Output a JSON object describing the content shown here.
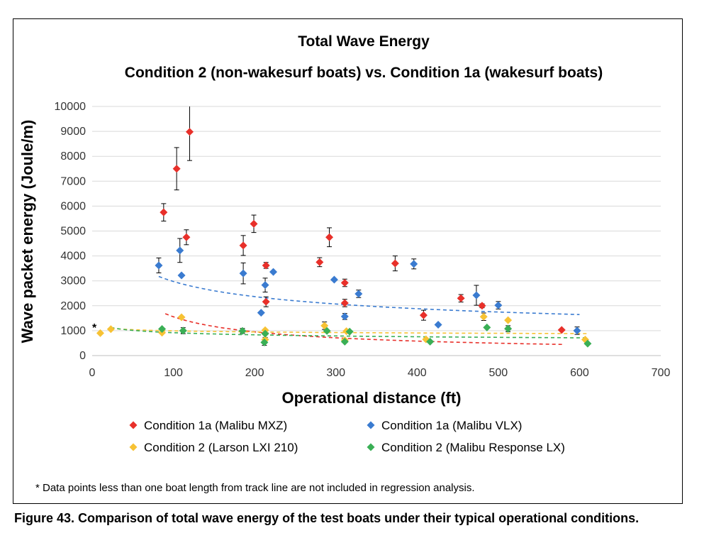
{
  "figure_caption": "Figure 43. Comparison of total wave energy of the test boats under their typical operational conditions.",
  "footnote": "* Data points less than one boat length from track line are not included in regression analysis.",
  "asterisk_marker": "*",
  "colors": {
    "red": "#e8302a",
    "blue": "#3a7bd0",
    "yellow": "#f7c234",
    "green": "#3aaf55",
    "grid": "#d9d9d9"
  },
  "chart_data": {
    "type": "scatter",
    "title": "Total Wave Energy",
    "subtitle": "Condition 2 (non-wakesurf boats) vs. Condition 1a (wakesurf boats)",
    "xlabel": "Operational distance (ft)",
    "ylabel": "Wave packet energy (Joule/m)",
    "xlim": [
      0,
      700
    ],
    "ylim": [
      0,
      10000
    ],
    "x_ticks": [
      0,
      100,
      200,
      300,
      400,
      500,
      600,
      700
    ],
    "y_ticks": [
      0,
      1000,
      2000,
      3000,
      4000,
      5000,
      6000,
      7000,
      8000,
      9000,
      10000
    ],
    "grid": "horizontal",
    "legend_position": "bottom",
    "series": [
      {
        "name": "Condition 1a (Malibu MXZ)",
        "color": "#e8302a",
        "points": [
          {
            "x": 88,
            "y": 5750,
            "err": 350
          },
          {
            "x": 104,
            "y": 7500,
            "err": 850
          },
          {
            "x": 116,
            "y": 4750,
            "err": 300
          },
          {
            "x": 120,
            "y": 8980,
            "err": 1150
          },
          {
            "x": 186,
            "y": 4420,
            "err": 400
          },
          {
            "x": 199,
            "y": 5290,
            "err": 350
          },
          {
            "x": 214,
            "y": 3620,
            "err": 120
          },
          {
            "x": 214,
            "y": 2160,
            "err": 200
          },
          {
            "x": 280,
            "y": 3750,
            "err": 180
          },
          {
            "x": 292,
            "y": 4750,
            "err": 380
          },
          {
            "x": 311,
            "y": 2920,
            "err": 150
          },
          {
            "x": 311,
            "y": 2110,
            "err": 150
          },
          {
            "x": 373,
            "y": 3700,
            "err": 300
          },
          {
            "x": 408,
            "y": 1620,
            "err": 200
          },
          {
            "x": 454,
            "y": 2300,
            "err": 150
          },
          {
            "x": 480,
            "y": 2000,
            "err": 80
          },
          {
            "x": 578,
            "y": 1030,
            "err": 0
          }
        ],
        "trend": {
          "a": 41000,
          "b": -0.71,
          "x_start": 90,
          "x_end": 580
        }
      },
      {
        "name": "Condition 1a (Malibu VLX)",
        "color": "#3a7bd0",
        "points": [
          {
            "x": 82,
            "y": 3620,
            "err": 300
          },
          {
            "x": 108,
            "y": 4220,
            "err": 480
          },
          {
            "x": 110,
            "y": 3220,
            "err": 0
          },
          {
            "x": 186,
            "y": 3300,
            "err": 420
          },
          {
            "x": 208,
            "y": 1720,
            "err": 0
          },
          {
            "x": 213,
            "y": 2830,
            "err": 280
          },
          {
            "x": 223,
            "y": 3360,
            "err": 0
          },
          {
            "x": 298,
            "y": 3050,
            "err": 0
          },
          {
            "x": 311,
            "y": 1570,
            "err": 120
          },
          {
            "x": 328,
            "y": 2480,
            "err": 150
          },
          {
            "x": 396,
            "y": 3680,
            "err": 200
          },
          {
            "x": 426,
            "y": 1240,
            "err": 0
          },
          {
            "x": 473,
            "y": 2420,
            "err": 400
          },
          {
            "x": 500,
            "y": 2020,
            "err": 150
          },
          {
            "x": 597,
            "y": 1000,
            "err": 150
          }
        ],
        "trend": {
          "a": 13600,
          "b": -0.33,
          "x_start": 82,
          "x_end": 600
        }
      },
      {
        "name": "Condition 2 (Larson LXI 210)",
        "color": "#f7c234",
        "points": [
          {
            "x": 10,
            "y": 900,
            "err": 0
          },
          {
            "x": 23,
            "y": 1060,
            "err": 0
          },
          {
            "x": 86,
            "y": 920,
            "err": 0
          },
          {
            "x": 110,
            "y": 1540,
            "err": 0
          },
          {
            "x": 213,
            "y": 640,
            "err": 0
          },
          {
            "x": 213,
            "y": 1020,
            "err": 0
          },
          {
            "x": 286,
            "y": 1200,
            "err": 150
          },
          {
            "x": 311,
            "y": 620,
            "err": 0
          },
          {
            "x": 313,
            "y": 980,
            "err": 0
          },
          {
            "x": 411,
            "y": 650,
            "err": 0
          },
          {
            "x": 482,
            "y": 1560,
            "err": 150
          },
          {
            "x": 512,
            "y": 1420,
            "err": 0
          },
          {
            "x": 607,
            "y": 640,
            "err": 0
          }
        ],
        "trend": {
          "a": 1340,
          "b": -0.065,
          "x_start": 23,
          "x_end": 610
        }
      },
      {
        "name": "Condition 2 (Malibu Response LX)",
        "color": "#3aaf55",
        "points": [
          {
            "x": 86,
            "y": 1070,
            "err": 0
          },
          {
            "x": 112,
            "y": 1000,
            "err": 120
          },
          {
            "x": 185,
            "y": 990,
            "err": 100
          },
          {
            "x": 212,
            "y": 530,
            "err": 120
          },
          {
            "x": 213,
            "y": 880,
            "err": 150
          },
          {
            "x": 289,
            "y": 990,
            "err": 0
          },
          {
            "x": 311,
            "y": 560,
            "err": 0
          },
          {
            "x": 317,
            "y": 960,
            "err": 0
          },
          {
            "x": 416,
            "y": 560,
            "err": 0
          },
          {
            "x": 486,
            "y": 1130,
            "err": 0
          },
          {
            "x": 512,
            "y": 1080,
            "err": 120
          },
          {
            "x": 610,
            "y": 480,
            "err": 0
          }
        ],
        "trend": {
          "a": 1750,
          "b": -0.14,
          "x_start": 23,
          "x_end": 610
        }
      }
    ]
  }
}
